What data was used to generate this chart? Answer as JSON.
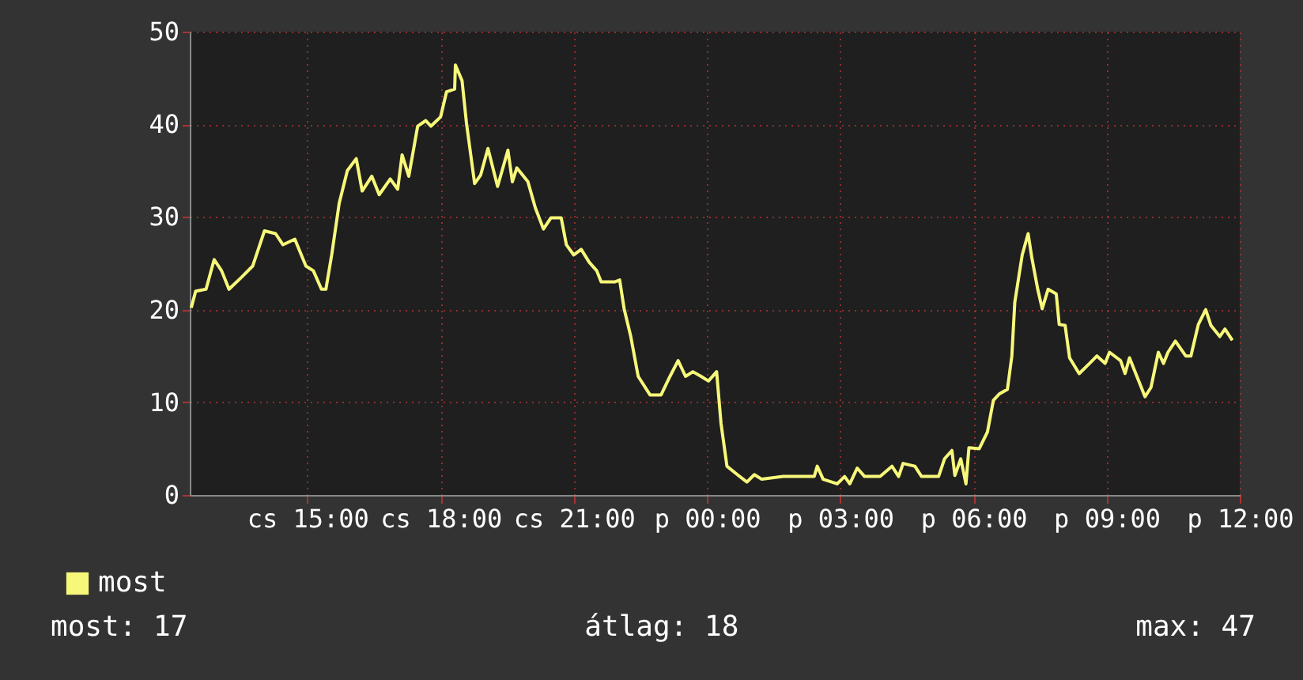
{
  "chart_data": {
    "type": "line",
    "x": [
      "--01-02T12:23",
      "--01-02T12:29",
      "--01-02T12:43",
      "--01-02T12:54",
      "--01-02T13:04",
      "--01-02T13:14",
      "--01-02T13:31",
      "--01-02T13:46",
      "--01-02T14:02",
      "--01-02T14:17",
      "--01-02T14:27",
      "--01-02T14:43",
      "--01-02T14:58",
      "--01-02T15:08",
      "--01-02T15:19",
      "--01-02T15:25",
      "--01-02T15:33",
      "--01-02T15:43",
      "--01-02T15:54",
      "--01-02T16:06",
      "--01-02T16:14",
      "--01-02T16:27",
      "--01-02T16:37",
      "--01-02T16:52",
      "--01-02T17:02",
      "--01-02T17:08",
      "--01-02T17:17",
      "--01-02T17:29",
      "--01-02T17:40",
      "--01-02T17:47",
      "--01-02T18:00",
      "--01-02T18:08",
      "--01-02T18:19",
      "--01-02T18:20",
      "--01-02T18:29",
      "--01-02T18:35",
      "--01-02T18:46",
      "--01-02T18:54",
      "--01-02T19:04",
      "--01-02T19:17",
      "--01-02T19:31",
      "--01-02T19:37",
      "--01-02T19:43",
      "--01-02T19:58",
      "--01-02T20:08",
      "--01-02T20:19",
      "--01-02T20:29",
      "--01-02T20:43",
      "--01-02T20:50",
      "--01-02T21:00",
      "--01-02T21:10",
      "--01-02T21:21",
      "--01-02T21:31",
      "--01-02T21:37",
      "--01-02T21:56",
      "--01-02T22:02",
      "--01-02T22:08",
      "--01-02T22:17",
      "--01-02T22:27",
      "--01-02T22:43",
      "--01-02T22:58",
      "--01-02T23:10",
      "--01-02T23:21",
      "--01-02T23:31",
      "--01-02T23:41",
      "--01-02T23:52",
      "--01-03T00:02",
      "--01-03T00:13",
      "--01-03T00:19",
      "--01-03T00:27",
      "--01-03T00:41",
      "--01-03T00:54",
      "--01-03T01:04",
      "--01-03T01:14",
      "--01-03T01:43",
      "--01-03T01:56",
      "--01-03T02:25",
      "--01-03T02:29",
      "--01-03T02:37",
      "--01-03T02:56",
      "--01-03T03:06",
      "--01-03T03:13",
      "--01-03T03:23",
      "--01-03T03:33",
      "--01-03T03:54",
      "--01-03T04:10",
      "--01-03T04:19",
      "--01-03T04:25",
      "--01-03T04:41",
      "--01-03T04:50",
      "--01-03T05:13",
      "--01-03T05:21",
      "--01-03T05:31",
      "--01-03T05:35",
      "--01-03T05:43",
      "--01-03T05:50",
      "--01-03T05:54",
      "--01-03T06:08",
      "--01-03T06:19",
      "--01-03T06:27",
      "--01-03T06:35",
      "--01-03T06:46",
      "--01-03T06:52",
      "--01-03T06:56",
      "--01-03T07:06",
      "--01-03T07:14",
      "--01-03T07:19",
      "--01-03T07:27",
      "--01-03T07:33",
      "--01-03T07:41",
      "--01-03T07:52",
      "--01-03T07:56",
      "--01-03T08:04",
      "--01-03T08:10",
      "--01-03T08:23",
      "--01-03T08:37",
      "--01-03T08:47",
      "--01-03T08:58",
      "--01-03T09:04",
      "--01-03T09:19",
      "--01-03T09:25",
      "--01-03T09:31",
      "--01-03T09:41",
      "--01-03T09:52",
      "--01-03T10:00",
      "--01-03T10:10",
      "--01-03T10:17",
      "--01-03T10:23",
      "--01-03T10:33",
      "--01-03T10:47",
      "--01-03T10:54",
      "--01-03T11:04",
      "--01-03T11:14",
      "--01-03T11:21",
      "--01-03T11:33",
      "--01-03T11:40",
      "--01-03T11:50"
    ],
    "series": [
      {
        "name": "most",
        "color": "#f7f77a",
        "values": [
          20.2,
          22,
          22.2,
          25.4,
          24.2,
          22.2,
          23.5,
          24.7,
          28.5,
          28.2,
          27,
          27.6,
          24.7,
          24.2,
          22.2,
          22.2,
          26,
          31.5,
          35,
          36.3,
          32.8,
          34.4,
          32.4,
          34.1,
          33,
          36.7,
          34.4,
          39.8,
          40.4,
          39.8,
          40.8,
          43.5,
          43.8,
          46.4,
          44.7,
          40.1,
          33.6,
          34.5,
          37.4,
          33.3,
          37.2,
          33.8,
          35.3,
          33.8,
          31,
          28.7,
          29.9,
          29.9,
          27,
          25.9,
          26.5,
          25.1,
          24.2,
          23,
          23,
          23.2,
          20.1,
          17.1,
          12.8,
          10.8,
          10.8,
          12.8,
          14.5,
          12.8,
          13.3,
          12.8,
          12.3,
          13.3,
          7.7,
          3.1,
          2.2,
          1.4,
          2.2,
          1.7,
          2,
          2,
          2,
          3.1,
          1.7,
          1.2,
          2,
          1.2,
          2.9,
          2,
          2,
          3.1,
          2,
          3.4,
          3.1,
          2,
          2,
          3.9,
          4.8,
          2.1,
          3.9,
          1.2,
          5.1,
          5,
          6.8,
          10.2,
          10.9,
          11.4,
          15,
          20.8,
          25.9,
          28.2,
          25.6,
          22.2,
          20.1,
          22.2,
          21.7,
          18.4,
          18.3,
          14.8,
          13.1,
          14.2,
          15,
          14.2,
          15.4,
          14.5,
          13.1,
          14.8,
          12.8,
          10.6,
          11.6,
          15.4,
          14.2,
          15.4,
          16.6,
          15,
          15,
          18.4,
          20,
          18.3,
          17.1,
          17.9,
          16.7
        ]
      }
    ],
    "xlim": [
      "--01-02T12:21",
      "--01-03T12:00"
    ],
    "xticks": [
      {
        "value": "--01-02T15:00",
        "label": "cs 15:00"
      },
      {
        "value": "--01-02T18:00",
        "label": "cs 18:00"
      },
      {
        "value": "--01-02T21:00",
        "label": "cs 21:00"
      },
      {
        "value": "--01-03T00:00",
        "label": "p 00:00"
      },
      {
        "value": "--01-03T03:00",
        "label": "p 03:00"
      },
      {
        "value": "--01-03T06:00",
        "label": "p 06:00"
      },
      {
        "value": "--01-03T09:00",
        "label": "p 09:00"
      },
      {
        "value": "--01-03T12:00",
        "label": "p 12:00"
      }
    ],
    "ylim": [
      0,
      50
    ],
    "yticks": [
      0,
      10,
      20,
      30,
      40,
      50
    ],
    "grid": true,
    "legend": "bottom left",
    "marker": "none",
    "line_style": "solid",
    "annotations": [
      "most: 17",
      "átlag: 18",
      "max: 47"
    ]
  }
}
